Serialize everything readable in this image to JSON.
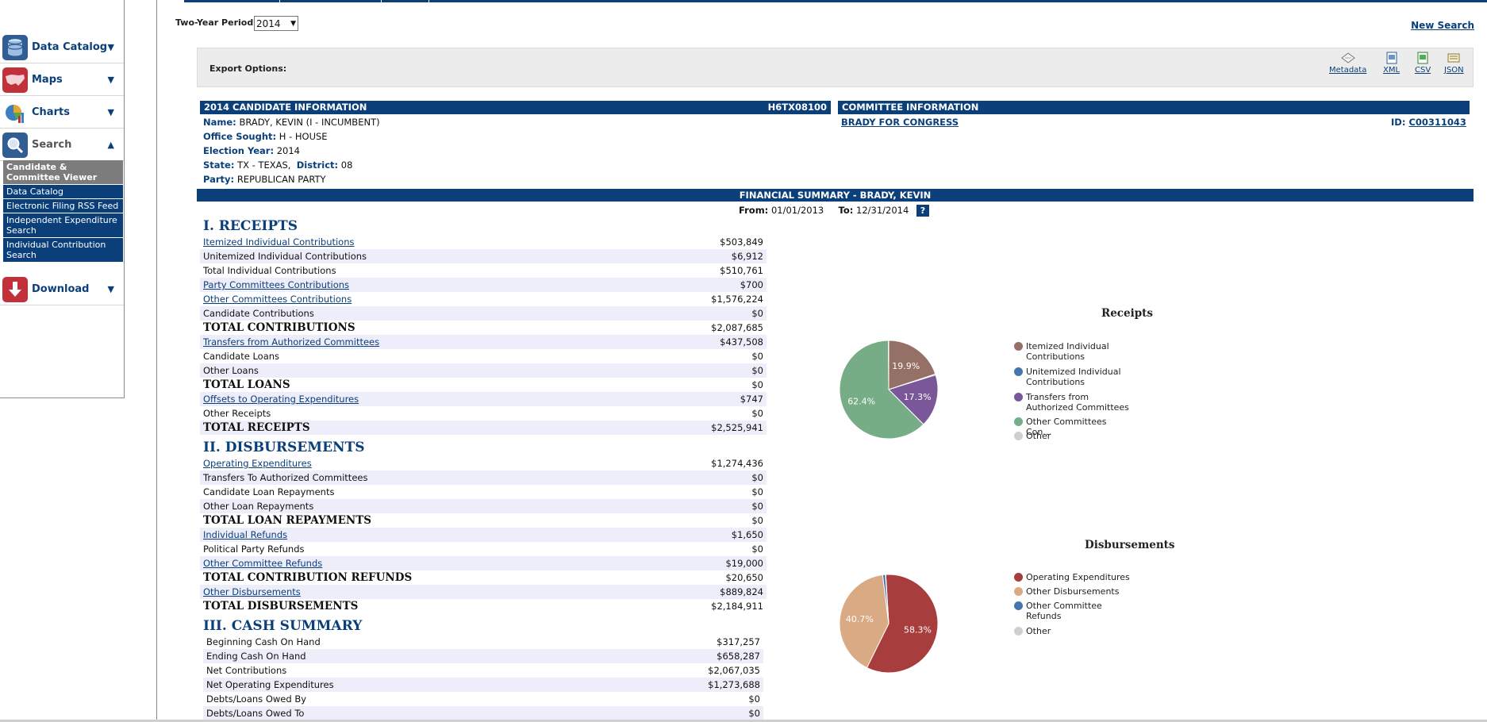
{
  "sidebar": {
    "items": [
      {
        "label": "Data Catalog",
        "icon": "database-icon",
        "caret": "▼"
      },
      {
        "label": "Maps",
        "icon": "us-map-icon",
        "caret": "▼"
      },
      {
        "label": "Charts",
        "icon": "pie-chart-icon",
        "caret": "▼"
      },
      {
        "label": "Search",
        "icon": "magnifier-icon",
        "caret": "▲"
      },
      {
        "label": "Download",
        "icon": "download-arrow-icon",
        "caret": "▼"
      }
    ],
    "search_subitems": [
      "Candidate & Committee Viewer",
      "Data Catalog",
      "Electronic Filing RSS Feed",
      "Independent Expenditure Search",
      "Individual Contribution Search"
    ]
  },
  "period": {
    "label": "Two-Year Period",
    "value": "2014"
  },
  "new_search": "New Search",
  "export": {
    "label": "Export Options:",
    "options": [
      "Metadata",
      "XML",
      "CSV",
      "JSON"
    ]
  },
  "candidate": {
    "header": "2014 CANDIDATE INFORMATION",
    "id": "H6TX08100",
    "name_label": "Name:",
    "name": "BRADY, KEVIN (I - INCUMBENT)",
    "office_label": "Office Sought:",
    "office": "H - HOUSE",
    "year_label": "Election Year:",
    "year": "2014",
    "state_label": "State:",
    "state": "TX - TEXAS,",
    "district_label": "District:",
    "district": "08",
    "party_label": "Party:",
    "party": "REPUBLICAN PARTY"
  },
  "committee": {
    "header": "COMMITTEE INFORMATION",
    "name": "BRADY FOR CONGRESS",
    "id_label": "ID:",
    "id": "C00311043"
  },
  "financial": {
    "header": "FINANCIAL SUMMARY - BRADY, KEVIN",
    "from_label": "From:",
    "from": "01/01/2013",
    "to_label": "To:",
    "to": "12/31/2014",
    "help": "?"
  },
  "receipts": {
    "title": "I. RECEIPTS",
    "rows": [
      {
        "label": "Itemized Individual Contributions",
        "value": "$503,849"
      },
      {
        "label": "Unitemized Individual Contributions",
        "value": "$6,912"
      },
      {
        "label": "Total Individual Contributions",
        "value": "$510,761"
      },
      {
        "label": "Party Committees Contributions",
        "value": "$700"
      },
      {
        "label": "Other Committees Contributions",
        "value": "$1,576,224"
      },
      {
        "label": "Candidate Contributions",
        "value": "$0"
      },
      {
        "label": "TOTAL CONTRIBUTIONS",
        "value": "$2,087,685"
      },
      {
        "label": "Transfers from Authorized Committees",
        "value": "$437,508"
      },
      {
        "label": "Candidate Loans",
        "value": "$0"
      },
      {
        "label": "Other Loans",
        "value": "$0"
      },
      {
        "label": "TOTAL LOANS",
        "value": "$0"
      },
      {
        "label": "Offsets to Operating Expenditures",
        "value": "$747"
      },
      {
        "label": "Other Receipts",
        "value": "$0"
      },
      {
        "label": "TOTAL RECEIPTS",
        "value": "$2,525,941"
      }
    ]
  },
  "disbursements": {
    "title": "II. DISBURSEMENTS",
    "rows": [
      {
        "label": "Operating Expenditures",
        "value": "$1,274,436"
      },
      {
        "label": "Transfers To Authorized Committees",
        "value": "$0"
      },
      {
        "label": "Candidate Loan Repayments",
        "value": "$0"
      },
      {
        "label": "Other Loan Repayments",
        "value": "$0"
      },
      {
        "label": "TOTAL LOAN REPAYMENTS",
        "value": "$0"
      },
      {
        "label": "Individual Refunds",
        "value": "$1,650"
      },
      {
        "label": "Political Party Refunds",
        "value": "$0"
      },
      {
        "label": "Other Committee Refunds",
        "value": "$19,000"
      },
      {
        "label": "TOTAL CONTRIBUTION REFUNDS",
        "value": "$20,650"
      },
      {
        "label": "Other Disbursements",
        "value": "$889,824"
      },
      {
        "label": "TOTAL DISBURSEMENTS",
        "value": "$2,184,911"
      }
    ]
  },
  "cash": {
    "title": "III. CASH SUMMARY",
    "rows": [
      {
        "label": "Beginning Cash On Hand",
        "value": "$317,257"
      },
      {
        "label": "Ending Cash On Hand",
        "value": "$658,287"
      },
      {
        "label": "Net Contributions",
        "value": "$2,067,035"
      },
      {
        "label": "Net Operating Expenditures",
        "value": "$1,273,688"
      },
      {
        "label": "Debts/Loans Owed By",
        "value": "$0"
      },
      {
        "label": "Debts/Loans Owed To",
        "value": "$0"
      }
    ]
  },
  "chart_data": [
    {
      "type": "pie",
      "title": "Receipts",
      "categories": [
        "Itemized Individual Contributions",
        "Unitemized Individual Contributions",
        "Transfers from Authorized Committees",
        "Other Committees Con…",
        "Other"
      ],
      "values": [
        19.9,
        0.3,
        17.3,
        62.4,
        0.1
      ],
      "labels": [
        "19.9%",
        "",
        "17.3%",
        "62.4%",
        ""
      ],
      "colors": [
        "#957066",
        "#4774ad",
        "#7a5798",
        "#76ad86",
        "#cfcfcf"
      ]
    },
    {
      "type": "pie",
      "title": "Disbursements",
      "categories": [
        "Operating Expenditures",
        "Other Disbursements",
        "Other Committee Refunds",
        "Other"
      ],
      "values": [
        58.3,
        40.7,
        0.9,
        0.1
      ],
      "labels": [
        "58.3%",
        "40.7%",
        "",
        ""
      ],
      "colors": [
        "#a83d3d",
        "#d9aa84",
        "#4774ad",
        "#cfcfcf"
      ]
    }
  ]
}
